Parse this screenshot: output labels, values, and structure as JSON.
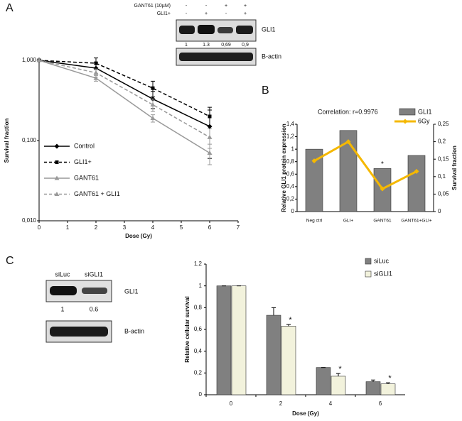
{
  "panel_labels": [
    "A",
    "B",
    "C"
  ],
  "blot_a": {
    "treatments": [
      {
        "label": "GANT61 (10µM)",
        "signs": [
          "-",
          "-",
          "+",
          "+"
        ]
      },
      {
        "label": "GLI1+",
        "signs": [
          "-",
          "+",
          "-",
          "+"
        ]
      }
    ],
    "bands": [
      "GLI1",
      "B-actin"
    ],
    "quantification": [
      "1",
      "1.3",
      "0,69",
      "0,9"
    ]
  },
  "blot_c": {
    "lanes": [
      "siLuc",
      "siGLI1"
    ],
    "bands": [
      "GLI1",
      "B-actin"
    ],
    "quantification": [
      "1",
      "0.6"
    ]
  },
  "chart_data": [
    {
      "type": "line",
      "xlabel": "Dose (Gy)",
      "ylabel": "Survival fraction",
      "x": [
        0,
        2,
        4,
        6
      ],
      "xlim": [
        0,
        7
      ],
      "xticks": [
        0,
        1,
        2,
        3,
        4,
        5,
        6,
        7
      ],
      "ylim": [
        0.01,
        1
      ],
      "ylog": true,
      "yticks": [
        {
          "value": 0.01,
          "label": "0,010"
        },
        {
          "value": 0.1,
          "label": "0,100"
        },
        {
          "value": 1,
          "label": "1,000"
        }
      ],
      "legend": "lower left",
      "series": [
        {
          "name": "Control",
          "color": "#000000",
          "dashed": false,
          "marker": "diamond",
          "values": [
            1,
            0.8,
            0.33,
            0.15
          ],
          "errors": [
            0,
            0.15,
            0.08,
            0.09
          ]
        },
        {
          "name": "GLI1+",
          "color": "#000000",
          "dashed": true,
          "marker": "square",
          "values": [
            1,
            0.92,
            0.45,
            0.2
          ],
          "errors": [
            0,
            0.15,
            0.1,
            0.06
          ]
        },
        {
          "name": "GANT61",
          "color": "#999999",
          "dashed": false,
          "marker": "triangle",
          "values": [
            1,
            0.6,
            0.19,
            0.07
          ],
          "errors": [
            0,
            0.05,
            0.02,
            0.02
          ]
        },
        {
          "name": "GANT61 + GLI1",
          "color": "#999999",
          "dashed": true,
          "marker": "triangle",
          "values": [
            1,
            0.7,
            0.28,
            0.11
          ],
          "errors": [
            0,
            0.08,
            0.05,
            0.03
          ]
        }
      ]
    },
    {
      "type": "bar_line",
      "title": "Correlation: r=0.9976",
      "ylabel": "Relative GLI1 protein expression",
      "y2label": "Survival fraction",
      "categories": [
        "Neg ctrl",
        "GLI+",
        "GANT61",
        "GANT61+GLI+"
      ],
      "ylim": [
        0,
        1.4
      ],
      "yticks": [
        0,
        {
          "value": 0.2,
          "label": "0,2"
        },
        {
          "value": 0.4,
          "label": "0,4"
        },
        {
          "value": 0.6,
          "label": "0,6"
        },
        {
          "value": 0.8,
          "label": "0,8"
        },
        1,
        {
          "value": 1.2,
          "label": "1,2"
        },
        {
          "value": 1.4,
          "label": "1,4"
        }
      ],
      "y2lim": [
        0,
        0.25
      ],
      "y2ticks": [
        0,
        {
          "value": 0.05,
          "label": "0,05"
        },
        {
          "value": 0.1,
          "label": "0,1"
        },
        {
          "value": 0.15,
          "label": "0,15"
        },
        {
          "value": 0.2,
          "label": "0,2"
        },
        {
          "value": 0.25,
          "label": "0,25"
        }
      ],
      "legend": "upper right",
      "annotations": [
        "*"
      ],
      "series": [
        {
          "name": "GLI1",
          "color": "#808080",
          "values": [
            1,
            1.3,
            0.69,
            0.9
          ]
        },
        {
          "name": "6Gy",
          "color": "#f5b800",
          "axis": "y2",
          "values": [
            0.145,
            0.2,
            0.065,
            0.115
          ]
        }
      ]
    },
    {
      "type": "bar",
      "xlabel": "Dose (Gy)",
      "ylabel": "Relative cellular survival",
      "categories": [
        "0",
        "2",
        "4",
        "6"
      ],
      "ylim": [
        0,
        1.2
      ],
      "yticks": [
        0,
        {
          "value": 0.2,
          "label": "0,2"
        },
        {
          "value": 0.4,
          "label": "0,4"
        },
        {
          "value": 0.6,
          "label": "0,6"
        },
        {
          "value": 0.8,
          "label": "0,8"
        },
        1,
        {
          "value": 1.2,
          "label": "1,2"
        }
      ],
      "legend": "upper right",
      "annotations": [
        "*",
        "*",
        "*"
      ],
      "series": [
        {
          "name": "siLuc",
          "color": "#808080",
          "values": [
            1,
            0.73,
            0.25,
            0.12
          ],
          "errors": [
            0,
            0.07,
            0,
            0.015
          ]
        },
        {
          "name": "siGLI1",
          "color": "#f2f2dc",
          "values": [
            1,
            0.63,
            0.17,
            0.1
          ],
          "errors": [
            0,
            0.015,
            0.025,
            0.01
          ]
        }
      ]
    }
  ]
}
